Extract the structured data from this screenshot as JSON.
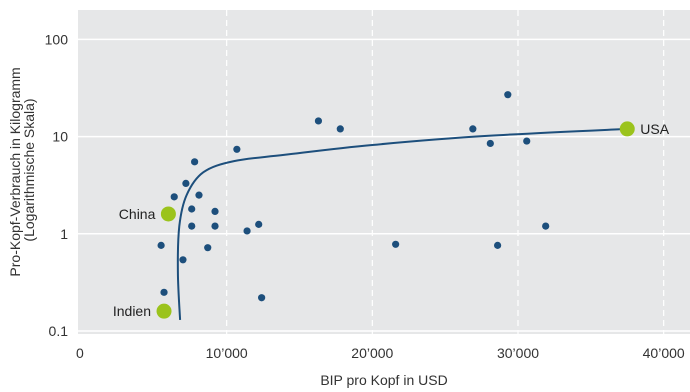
{
  "chart_data": {
    "type": "scatter",
    "title": "",
    "xlabel": "BIP pro Kopf in USD",
    "ylabel_lines": [
      "Pro-Kopf-Verbrauch in Kilogramm",
      "(Logarithmische Skala)"
    ],
    "xlim": [
      0,
      40000
    ],
    "ylim": [
      0.1,
      170
    ],
    "y_scale": "log",
    "grid": "vertical dashed lines at x ticks, horizontal lines at y ticks",
    "x_ticks": [
      {
        "value": 0,
        "label": "0"
      },
      {
        "value": 10000,
        "label": "10’000"
      },
      {
        "value": 20000,
        "label": "20’000"
      },
      {
        "value": 30000,
        "label": "30’000"
      },
      {
        "value": 40000,
        "label": "40’000"
      }
    ],
    "y_ticks": [
      {
        "value": 0.1,
        "label": "0.1"
      },
      {
        "value": 1,
        "label": "1"
      },
      {
        "value": 10,
        "label": "10"
      },
      {
        "value": 100,
        "label": "100"
      }
    ],
    "colors": {
      "background": "#e6e7e8",
      "grid": "#ffffff",
      "points": "#1d4f7c",
      "highlight": "#9bc31c",
      "trend": "#1d4f7c"
    },
    "series": [
      {
        "points": [
          {
            "x": 5500,
            "y": 0.76
          },
          {
            "x": 5700,
            "y": 0.25
          },
          {
            "x": 6400,
            "y": 2.4
          },
          {
            "x": 7000,
            "y": 0.54
          },
          {
            "x": 7200,
            "y": 3.3
          },
          {
            "x": 7600,
            "y": 1.8
          },
          {
            "x": 7600,
            "y": 1.2
          },
          {
            "x": 7800,
            "y": 5.5
          },
          {
            "x": 8100,
            "y": 2.5
          },
          {
            "x": 8700,
            "y": 0.72
          },
          {
            "x": 9200,
            "y": 1.7
          },
          {
            "x": 9200,
            "y": 1.2
          },
          {
            "x": 10700,
            "y": 7.4
          },
          {
            "x": 11400,
            "y": 1.07
          },
          {
            "x": 12200,
            "y": 1.25
          },
          {
            "x": 12400,
            "y": 0.22
          },
          {
            "x": 16300,
            "y": 14.5
          },
          {
            "x": 17800,
            "y": 12.0
          },
          {
            "x": 21600,
            "y": 0.78
          },
          {
            "x": 26900,
            "y": 12.0
          },
          {
            "x": 28100,
            "y": 8.5
          },
          {
            "x": 28600,
            "y": 0.76
          },
          {
            "x": 29300,
            "y": 27.0
          },
          {
            "x": 30600,
            "y": 9.0
          },
          {
            "x": 31900,
            "y": 1.2
          }
        ]
      }
    ],
    "highlighted": [
      {
        "label": "USA",
        "x": 37500,
        "y": 12.0,
        "label_side": "right"
      },
      {
        "label": "China",
        "x": 6000,
        "y": 1.6,
        "label_side": "left"
      },
      {
        "label": "Indien",
        "x": 5700,
        "y": 0.16,
        "label_side": "left"
      }
    ],
    "trend_line": [
      {
        "x": 6800,
        "y": 0.13
      },
      {
        "x": 6650,
        "y": 0.4
      },
      {
        "x": 6750,
        "y": 1.2
      },
      {
        "x": 7250,
        "y": 2.5
      },
      {
        "x": 8400,
        "y": 4.3
      },
      {
        "x": 10500,
        "y": 5.6
      },
      {
        "x": 14000,
        "y": 6.5
      },
      {
        "x": 20000,
        "y": 8.2
      },
      {
        "x": 28000,
        "y": 10.2
      },
      {
        "x": 37500,
        "y": 12.0
      }
    ]
  }
}
